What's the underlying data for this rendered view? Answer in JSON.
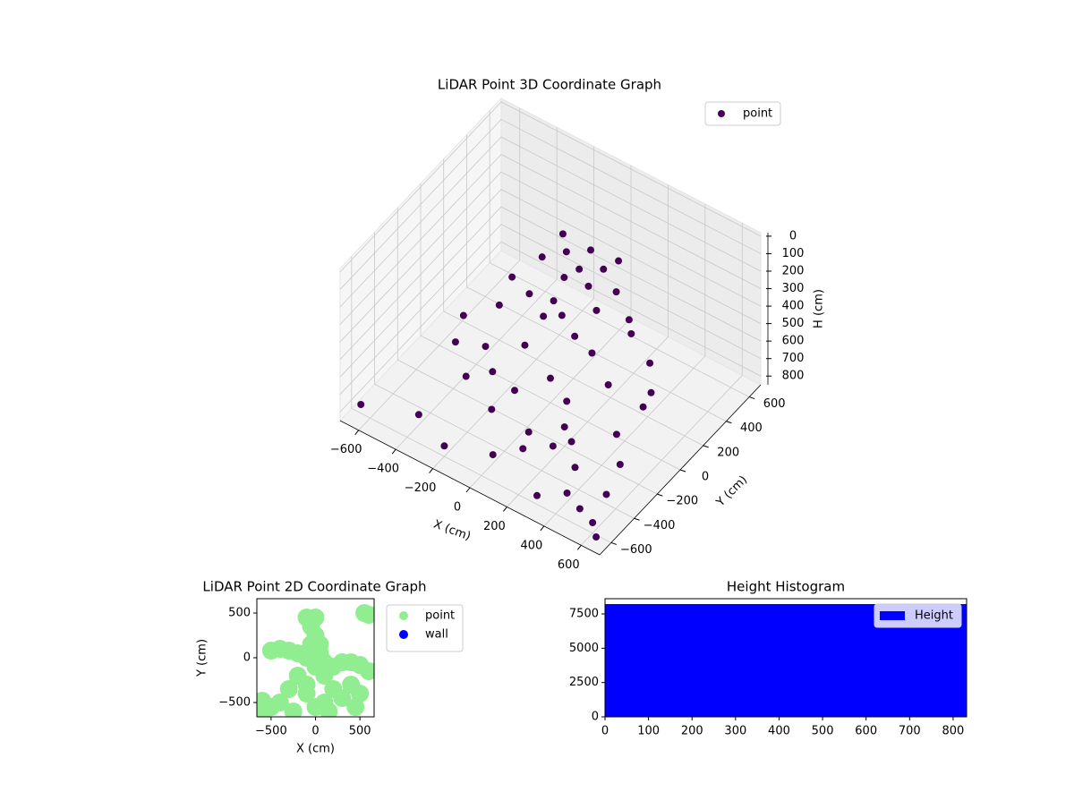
{
  "chart_data": [
    {
      "type": "scatter3d",
      "title": "LiDAR Point 3D Coordinate Graph",
      "xlabel": "X (cm)",
      "ylabel": "Y (cm)",
      "zlabel": "H (cm)",
      "xlim": [
        -700,
        700
      ],
      "ylim": [
        -700,
        700
      ],
      "zlim": [
        850,
        -20
      ],
      "xticks": [
        {
          "value": -600,
          "label": "−600"
        },
        {
          "value": -400,
          "label": "−400"
        },
        {
          "value": -200,
          "label": "−200"
        },
        0,
        200,
        400,
        600
      ],
      "yticks": [
        {
          "value": -600,
          "label": "−600"
        },
        {
          "value": -400,
          "label": "−400"
        },
        {
          "value": -200,
          "label": "−200"
        },
        0,
        200,
        400,
        600
      ],
      "zticks": [
        0,
        100,
        200,
        300,
        400,
        500,
        600,
        700,
        800
      ],
      "grid": true,
      "legend": "upper right",
      "series": [
        {
          "name": "point",
          "color": "#440154",
          "x": [
            -650,
            600,
            400,
            200,
            500,
            -400,
            300,
            100,
            650,
            500,
            -200,
            0,
            350,
            550,
            -400,
            -300,
            -200,
            0,
            200,
            350,
            450,
            500,
            450,
            300,
            100,
            -100,
            -300,
            -450,
            -500,
            -350,
            -200,
            0,
            150,
            250,
            100,
            -100,
            200,
            -250,
            -100,
            0,
            100,
            -50,
            50,
            200,
            -200,
            0,
            100,
            -100,
            300,
            -300,
            150,
            -150,
            0
          ],
          "y": [
            -600,
            -600,
            -500,
            -300,
            -200,
            -500,
            -600,
            -400,
            -650,
            -550,
            -600,
            -500,
            -350,
            -400,
            200,
            300,
            350,
            400,
            380,
            300,
            150,
            0,
            -150,
            -300,
            -350,
            -350,
            -250,
            -100,
            50,
            0,
            100,
            0,
            -100,
            100,
            200,
            -150,
            -200,
            -100,
            300,
            350,
            300,
            200,
            250,
            250,
            250,
            100,
            50,
            100,
            200,
            150,
            350,
            350,
            250
          ],
          "z": [
            800,
            790,
            800,
            780,
            790,
            790,
            800,
            780,
            810,
            800,
            790,
            800,
            785,
            795,
            650,
            600,
            620,
            600,
            610,
            640,
            650,
            600,
            680,
            700,
            720,
            700,
            690,
            680,
            660,
            720,
            700,
            710,
            690,
            680,
            650,
            730,
            740,
            740,
            250,
            220,
            240,
            300,
            330,
            280,
            300,
            420,
            450,
            480,
            350,
            400,
            200,
            210,
            260
          ]
        }
      ]
    },
    {
      "type": "scatter",
      "title": "LiDAR Point 2D Coordinate Graph",
      "xlabel": "X (cm)",
      "ylabel": "Y (cm)",
      "xlim": [
        -660,
        660
      ],
      "ylim": [
        -660,
        660
      ],
      "xticks": [
        {
          "value": -500,
          "label": "−500"
        },
        0,
        500
      ],
      "yticks": [
        {
          "value": -500,
          "label": "−500"
        },
        0,
        500
      ],
      "legend": "outside right",
      "series": [
        {
          "name": "point",
          "color": "#90ee90",
          "x": [
            -100,
            0,
            -50,
            0,
            50,
            -400,
            -500,
            -300,
            -200,
            -100,
            0,
            100,
            200,
            300,
            400,
            500,
            600,
            550,
            600,
            -600,
            -600,
            -400,
            -300,
            -200,
            -100,
            0,
            100,
            200,
            300,
            400,
            500,
            450,
            -500,
            -250,
            150,
            100,
            -100,
            0,
            50,
            -50
          ],
          "y": [
            450,
            450,
            350,
            250,
            150,
            100,
            80,
            80,
            50,
            0,
            0,
            -50,
            -100,
            -50,
            -50,
            -80,
            -150,
            500,
            480,
            -480,
            -620,
            -500,
            -350,
            -200,
            -400,
            -550,
            -500,
            -350,
            -450,
            -300,
            -400,
            -550,
            -550,
            -600,
            -600,
            -200,
            -300,
            -100,
            50,
            150
          ]
        },
        {
          "name": "wall",
          "color": "#0000ff",
          "x": [],
          "y": []
        }
      ]
    },
    {
      "type": "histogram",
      "title": "Height Histogram",
      "bins": [
        0,
        831
      ],
      "counts": [
        8220
      ],
      "xlim": [
        0,
        831
      ],
      "ylim": [
        0,
        8610
      ],
      "xticks": [
        0,
        100,
        200,
        300,
        400,
        500,
        600,
        700,
        800
      ],
      "yticks": [
        0,
        2500,
        5000,
        7500
      ],
      "legend": "upper right",
      "series": [
        {
          "name": "Height",
          "color": "#0000ff"
        }
      ]
    }
  ]
}
